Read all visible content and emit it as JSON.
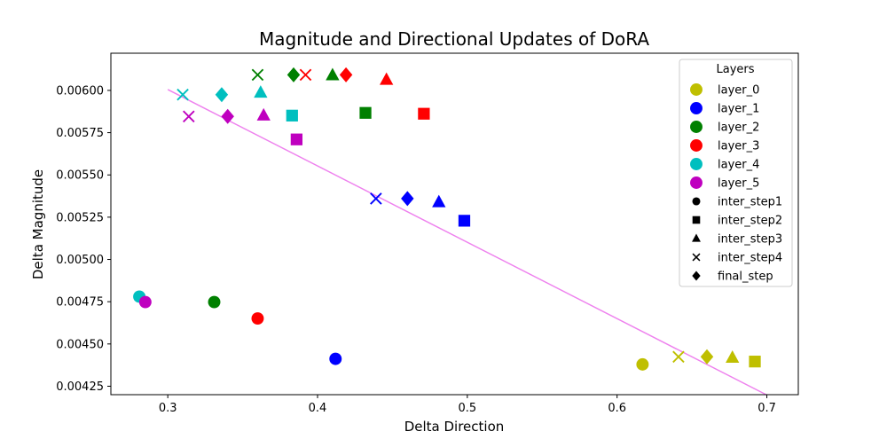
{
  "chart_data": {
    "type": "scatter",
    "title": "Magnitude and Directional Updates of DoRA",
    "xlabel": "Delta Direction",
    "ylabel": "Delta Magnitude",
    "xlim": [
      0.262,
      0.721
    ],
    "ylim": [
      0.0042,
      0.00622
    ],
    "x_ticks": [
      0.3,
      0.4,
      0.5,
      0.6,
      0.7
    ],
    "x_tick_labels": [
      "0.3",
      "0.4",
      "0.5",
      "0.6",
      "0.7"
    ],
    "y_ticks": [
      0.00425,
      0.0045,
      0.00475,
      0.005,
      0.00525,
      0.0055,
      0.00575,
      0.006
    ],
    "y_tick_labels": [
      "0.00425",
      "0.00450",
      "0.00475",
      "0.00500",
      "0.00525",
      "0.00550",
      "0.00575",
      "0.00600"
    ],
    "grid": false,
    "legend": {
      "title": "Layers",
      "placement": "top-right",
      "layers": [
        {
          "label": "layer_0",
          "color": "#bfbf00"
        },
        {
          "label": "layer_1",
          "color": "#0000ff"
        },
        {
          "label": "layer_2",
          "color": "#008000"
        },
        {
          "label": "layer_3",
          "color": "#ff0000"
        },
        {
          "label": "layer_4",
          "color": "#00bfbf"
        },
        {
          "label": "layer_5",
          "color": "#bf00bf"
        }
      ],
      "steps": [
        {
          "label": "inter_step1",
          "marker": "circle"
        },
        {
          "label": "inter_step2",
          "marker": "square"
        },
        {
          "label": "inter_step3",
          "marker": "triangle"
        },
        {
          "label": "inter_step4",
          "marker": "x"
        },
        {
          "label": "final_step",
          "marker": "diamond"
        }
      ]
    },
    "series": [
      {
        "layer": "layer_0",
        "color": "#bfbf00",
        "points": [
          {
            "step": "inter_step1",
            "marker": "circle",
            "x": 0.617,
            "y": 0.004379
          },
          {
            "step": "inter_step2",
            "marker": "square",
            "x": 0.692,
            "y": 0.004396
          },
          {
            "step": "inter_step3",
            "marker": "triangle",
            "x": 0.677,
            "y": 0.004418
          },
          {
            "step": "inter_step4",
            "marker": "x",
            "x": 0.641,
            "y": 0.004424
          },
          {
            "step": "final_step",
            "marker": "diamond",
            "x": 0.66,
            "y": 0.004424
          }
        ]
      },
      {
        "layer": "layer_1",
        "color": "#0000ff",
        "points": [
          {
            "step": "inter_step1",
            "marker": "circle",
            "x": 0.412,
            "y": 0.004412
          },
          {
            "step": "inter_step2",
            "marker": "square",
            "x": 0.498,
            "y": 0.005229
          },
          {
            "step": "inter_step3",
            "marker": "triangle",
            "x": 0.481,
            "y": 0.005338
          },
          {
            "step": "inter_step4",
            "marker": "x",
            "x": 0.439,
            "y": 0.00536
          },
          {
            "step": "final_step",
            "marker": "diamond",
            "x": 0.46,
            "y": 0.00536
          }
        ]
      },
      {
        "layer": "layer_2",
        "color": "#008000",
        "points": [
          {
            "step": "inter_step1",
            "marker": "circle",
            "x": 0.331,
            "y": 0.004748
          },
          {
            "step": "inter_step2",
            "marker": "square",
            "x": 0.432,
            "y": 0.005867
          },
          {
            "step": "inter_step3",
            "marker": "triangle",
            "x": 0.41,
            "y": 0.006089
          },
          {
            "step": "inter_step4",
            "marker": "x",
            "x": 0.36,
            "y": 0.006092
          },
          {
            "step": "final_step",
            "marker": "diamond",
            "x": 0.384,
            "y": 0.006092
          }
        ]
      },
      {
        "layer": "layer_3",
        "color": "#ff0000",
        "points": [
          {
            "step": "inter_step1",
            "marker": "circle",
            "x": 0.36,
            "y": 0.004651
          },
          {
            "step": "inter_step2",
            "marker": "square",
            "x": 0.471,
            "y": 0.005862
          },
          {
            "step": "inter_step3",
            "marker": "triangle",
            "x": 0.446,
            "y": 0.006062
          },
          {
            "step": "inter_step4",
            "marker": "x",
            "x": 0.392,
            "y": 0.006092
          },
          {
            "step": "final_step",
            "marker": "diamond",
            "x": 0.419,
            "y": 0.006092
          }
        ]
      },
      {
        "layer": "layer_4",
        "color": "#00bfbf",
        "points": [
          {
            "step": "inter_step1",
            "marker": "circle",
            "x": 0.281,
            "y": 0.00478
          },
          {
            "step": "inter_step2",
            "marker": "square",
            "x": 0.383,
            "y": 0.005851
          },
          {
            "step": "inter_step3",
            "marker": "triangle",
            "x": 0.362,
            "y": 0.005986
          },
          {
            "step": "inter_step4",
            "marker": "x",
            "x": 0.31,
            "y": 0.005975
          },
          {
            "step": "final_step",
            "marker": "diamond",
            "x": 0.336,
            "y": 0.005975
          }
        ]
      },
      {
        "layer": "layer_5",
        "color": "#bf00bf",
        "points": [
          {
            "step": "inter_step1",
            "marker": "circle",
            "x": 0.285,
            "y": 0.004748
          },
          {
            "step": "inter_step2",
            "marker": "square",
            "x": 0.386,
            "y": 0.00571
          },
          {
            "step": "inter_step3",
            "marker": "triangle",
            "x": 0.364,
            "y": 0.005851
          },
          {
            "step": "inter_step4",
            "marker": "x",
            "x": 0.314,
            "y": 0.005846
          },
          {
            "step": "final_step",
            "marker": "diamond",
            "x": 0.34,
            "y": 0.005846
          }
        ]
      }
    ],
    "trend_line": {
      "color": "#ee82ee",
      "x": [
        0.3,
        0.7
      ],
      "y": [
        0.006005,
        0.004198
      ]
    }
  }
}
